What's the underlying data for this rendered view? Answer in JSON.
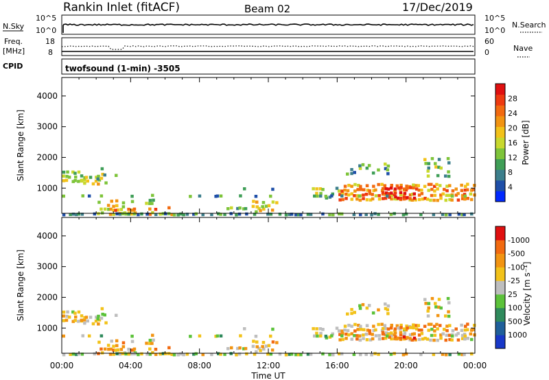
{
  "header": {
    "station": "Rankin Inlet (fitACF)",
    "beam": "Beam 02",
    "date": "17/Dec/2019"
  },
  "panels": {
    "nsky": {
      "left_label": "N.Sky",
      "right_label": "N.Search",
      "left_ticks": [
        "10^5",
        "10^0"
      ],
      "right_ticks": [
        "10^5",
        "10^0"
      ]
    },
    "freq": {
      "left_label_1": "Freq.",
      "left_label_2": "[MHz]",
      "right_label": "Nave",
      "left_ticks": [
        "18",
        "8"
      ],
      "right_ticks": [
        "60",
        "0"
      ]
    },
    "cpid": {
      "label": "CPID",
      "text": "twofsound (1-min) -3505"
    }
  },
  "chart_data": [
    {
      "type": "heatmap",
      "title": "",
      "xlabel": "Time UT",
      "ylabel": "Slant Range [km]",
      "xlim": [
        "00:00",
        "24:00"
      ],
      "x_ticks": [
        "00:00",
        "04:00",
        "08:00",
        "12:00",
        "16:00",
        "20:00",
        "00:00"
      ],
      "ylim": [
        180,
        4600
      ],
      "y_ticks": [
        1000,
        2000,
        3000,
        4000
      ],
      "colorbar": {
        "label": "Power [dB]",
        "ticks": [
          "4",
          "8",
          "12",
          "16",
          "20",
          "24",
          "28"
        ],
        "colors": [
          "#0028ff",
          "#1f4fa8",
          "#3d7f8c",
          "#3f9e57",
          "#7ec43a",
          "#c8d82e",
          "#f2c21a",
          "#f29412",
          "#f26a10",
          "#ee3a10",
          "#e01010"
        ]
      }
    },
    {
      "type": "heatmap",
      "title": "",
      "xlabel": "Time UT",
      "ylabel": "Slant Range [km]",
      "xlim": [
        "00:00",
        "24:00"
      ],
      "x_ticks": [
        "00:00",
        "04:00",
        "08:00",
        "12:00",
        "16:00",
        "20:00",
        "00:00"
      ],
      "ylim": [
        180,
        4600
      ],
      "y_ticks": [
        1000,
        2000,
        3000,
        4000
      ],
      "colorbar": {
        "label": "Velocity [m s⁻¹]",
        "ticks": [
          "1000",
          "500",
          "100",
          "25",
          "-25",
          "-100",
          "-500",
          "-1000"
        ],
        "colors": [
          "#1838c8",
          "#1f5f9a",
          "#2f8a5c",
          "#5cc23a",
          "#bebebe",
          "#f2c21a",
          "#f29412",
          "#f26a10",
          "#e01010"
        ]
      }
    }
  ]
}
